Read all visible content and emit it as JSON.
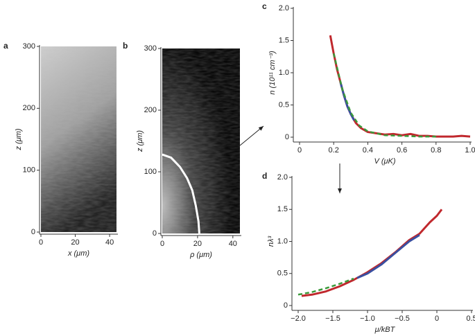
{
  "chart_data": [
    {
      "type": "image",
      "label": "a",
      "xlabel": "x (μm)",
      "ylabel": "z (μm)",
      "xlim": [
        0,
        44
      ],
      "ylim": [
        0,
        300
      ],
      "xticks": [
        0,
        20,
        40
      ],
      "yticks": [
        0,
        100,
        200,
        300
      ]
    },
    {
      "type": "image",
      "label": "b",
      "xlabel": "ρ (μm)",
      "ylabel": "z (μm)",
      "xlim": [
        0,
        44
      ],
      "ylim": [
        0,
        300
      ],
      "xticks": [
        0,
        20,
        40
      ],
      "yticks": [
        0,
        100,
        200,
        300
      ],
      "series": [
        {
          "color": "#ffffff",
          "x": [
            0,
            5,
            10,
            14,
            17,
            19,
            20.5,
            21
          ],
          "values": [
            128,
            123,
            108,
            90,
            70,
            45,
            20,
            0
          ]
        }
      ]
    },
    {
      "type": "line",
      "label": "c",
      "xlabel": "V (μK)",
      "ylabel": "n (10¹¹ cm⁻³)",
      "xlim": [
        0,
        1
      ],
      "ylim": [
        0,
        2
      ],
      "xticks": [
        0,
        0.2,
        0.4,
        0.6,
        0.8,
        {
          "value": 1,
          "label": "1.0"
        }
      ],
      "yticks": [
        0,
        0.5,
        {
          "value": 1,
          "label": "1.0"
        },
        1.5,
        {
          "value": 2,
          "label": "2.0"
        }
      ],
      "series": [
        {
          "color": "#c0282d",
          "x": [
            0.18,
            0.2,
            0.22,
            0.24,
            0.26,
            0.28,
            0.3,
            0.33,
            0.36,
            0.4,
            0.45,
            0.5,
            0.55,
            0.6,
            0.65,
            0.7,
            0.75,
            0.8,
            0.85,
            0.9,
            0.95,
            1.0
          ],
          "values": [
            1.58,
            1.3,
            1.05,
            0.85,
            0.65,
            0.48,
            0.36,
            0.22,
            0.14,
            0.08,
            0.06,
            0.04,
            0.05,
            0.03,
            0.05,
            0.02,
            0.02,
            0.01,
            0.01,
            0.01,
            0.02,
            0.01
          ]
        },
        {
          "color": "#3a4fa0",
          "x": [
            0.24,
            0.26,
            0.28,
            0.3,
            0.32
          ],
          "values": [
            0.85,
            0.65,
            0.48,
            0.36,
            0.26
          ]
        },
        {
          "color": "#3a9a3a",
          "dashed": true,
          "x": [
            0.2,
            0.25,
            0.3,
            0.35,
            0.4,
            0.5,
            0.6,
            0.7,
            0.8
          ],
          "values": [
            1.3,
            0.75,
            0.38,
            0.18,
            0.09,
            0.03,
            0.02,
            0.01,
            0.01
          ]
        }
      ]
    },
    {
      "type": "line",
      "label": "d",
      "xlabel": "μ/kBT",
      "ylabel": "nλ³",
      "xlim": [
        -2,
        0.5
      ],
      "ylim": [
        0,
        2
      ],
      "xticks": [
        {
          "value": -2,
          "label": "−2.0"
        },
        {
          "value": -1.5,
          "label": "−1.5"
        },
        {
          "value": -1,
          "label": "−1.0"
        },
        {
          "value": -0.5,
          "label": "−0.5"
        },
        0,
        0.5
      ],
      "yticks": [
        0,
        0.5,
        {
          "value": 1,
          "label": "1.0"
        },
        1.5,
        {
          "value": 2,
          "label": "2.0"
        }
      ],
      "series": [
        {
          "color": "#c0282d",
          "x": [
            -1.95,
            -1.8,
            -1.6,
            -1.4,
            -1.2,
            -1.0,
            -0.8,
            -0.6,
            -0.4,
            -0.25,
            -0.1,
            0.0,
            0.07
          ],
          "values": [
            0.15,
            0.17,
            0.22,
            0.3,
            0.4,
            0.52,
            0.66,
            0.83,
            1.02,
            1.12,
            1.3,
            1.4,
            1.5
          ]
        },
        {
          "color": "#3a4fa0",
          "x": [
            -1.15,
            -1.0,
            -0.8,
            -0.6,
            -0.4,
            -0.25
          ],
          "values": [
            0.43,
            0.5,
            0.64,
            0.82,
            1.0,
            1.1
          ]
        },
        {
          "color": "#3a9a3a",
          "dashed": true,
          "x": [
            -2.0,
            -1.8,
            -1.6,
            -1.4,
            -1.2
          ],
          "values": [
            0.17,
            0.21,
            0.27,
            0.34,
            0.42
          ]
        }
      ]
    }
  ]
}
